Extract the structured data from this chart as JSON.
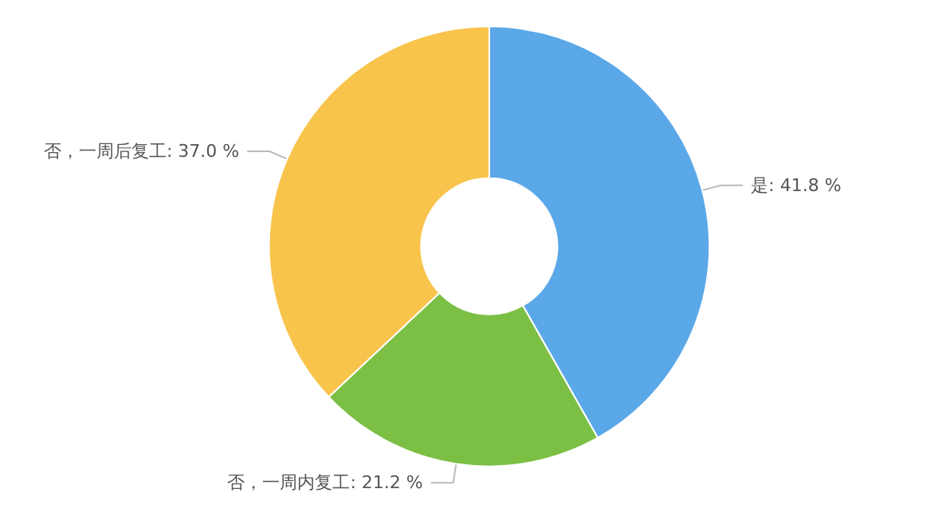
{
  "chart_data": {
    "type": "donut",
    "categories": [
      "是",
      "否，一周内复工",
      "否，一周后复工"
    ],
    "values": [
      41.8,
      21.2,
      37.0
    ],
    "value_labels": [
      "41.8 %",
      "21.2 %",
      "37.0 %"
    ],
    "colors": [
      "#5ba8e8",
      "#7cbf45",
      "#f8c44c"
    ],
    "legend": false
  }
}
